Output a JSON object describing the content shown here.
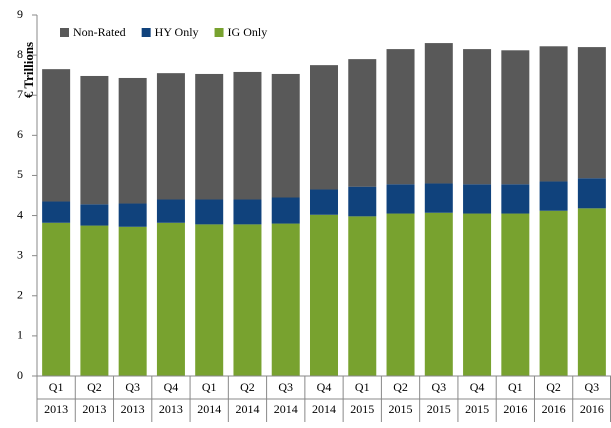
{
  "chart_data": {
    "type": "stacked_bar",
    "y_label": "€ Trillions",
    "categories": [
      [
        "Q1",
        "2013"
      ],
      [
        "Q2",
        "2013"
      ],
      [
        "Q3",
        "2013"
      ],
      [
        "Q4",
        "2013"
      ],
      [
        "Q1",
        "2014"
      ],
      [
        "Q2",
        "2014"
      ],
      [
        "Q3",
        "2014"
      ],
      [
        "Q4",
        "2014"
      ],
      [
        "Q1",
        "2015"
      ],
      [
        "Q2",
        "2015"
      ],
      [
        "Q3",
        "2015"
      ],
      [
        "Q4",
        "2015"
      ],
      [
        "Q1",
        "2016"
      ],
      [
        "Q2",
        "2016"
      ],
      [
        "Q3",
        "2016"
      ]
    ],
    "series": [
      {
        "name": "IG Only",
        "color": "#78a22f",
        "values": [
          3.82,
          3.75,
          3.72,
          3.82,
          3.78,
          3.78,
          3.8,
          4.02,
          3.98,
          4.05,
          4.07,
          4.05,
          4.05,
          4.12,
          4.18
        ]
      },
      {
        "name": "HY Only",
        "color": "#10427c",
        "values": [
          0.53,
          0.53,
          0.58,
          0.58,
          0.62,
          0.62,
          0.65,
          0.63,
          0.74,
          0.73,
          0.73,
          0.73,
          0.73,
          0.73,
          0.75
        ]
      },
      {
        "name": "Non-Rated",
        "color": "#595959",
        "values": [
          3.3,
          3.2,
          3.13,
          3.15,
          3.13,
          3.18,
          3.08,
          3.1,
          3.18,
          3.37,
          3.5,
          3.37,
          3.34,
          3.37,
          3.27
        ]
      }
    ],
    "legend_order": [
      2,
      1,
      0
    ],
    "ylim": [
      0,
      9
    ],
    "yticks": [
      0,
      1,
      2,
      3,
      4,
      5,
      6,
      7,
      8,
      9
    ],
    "grid": false
  }
}
